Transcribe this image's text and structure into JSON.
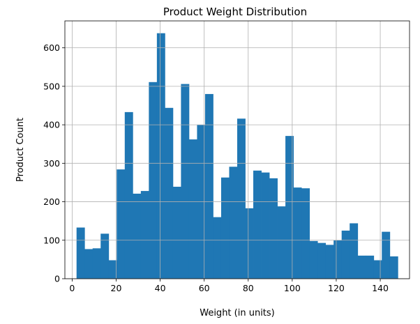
{
  "chart_data": {
    "type": "bar",
    "title": "Product Weight Distribution",
    "xlabel": "Weight (in units)",
    "ylabel": "Product Count",
    "bin_start": 2,
    "bin_width": 3.65,
    "values": [
      133,
      77,
      79,
      117,
      48,
      284,
      433,
      221,
      228,
      511,
      638,
      444,
      239,
      506,
      362,
      400,
      480,
      160,
      263,
      291,
      416,
      183,
      281,
      276,
      261,
      188,
      371,
      237,
      235,
      98,
      93,
      88,
      100,
      125,
      144,
      60,
      60,
      48,
      122,
      58
    ],
    "xlim": [
      -3.3,
      153.3
    ],
    "ylim": [
      0,
      670
    ],
    "xticks": [
      0,
      20,
      40,
      60,
      80,
      100,
      120,
      140
    ],
    "yticks": [
      0,
      100,
      200,
      300,
      400,
      500,
      600
    ],
    "grid": true,
    "bar_color": "#1f77b4",
    "grid_color": "#b0b0b0"
  }
}
